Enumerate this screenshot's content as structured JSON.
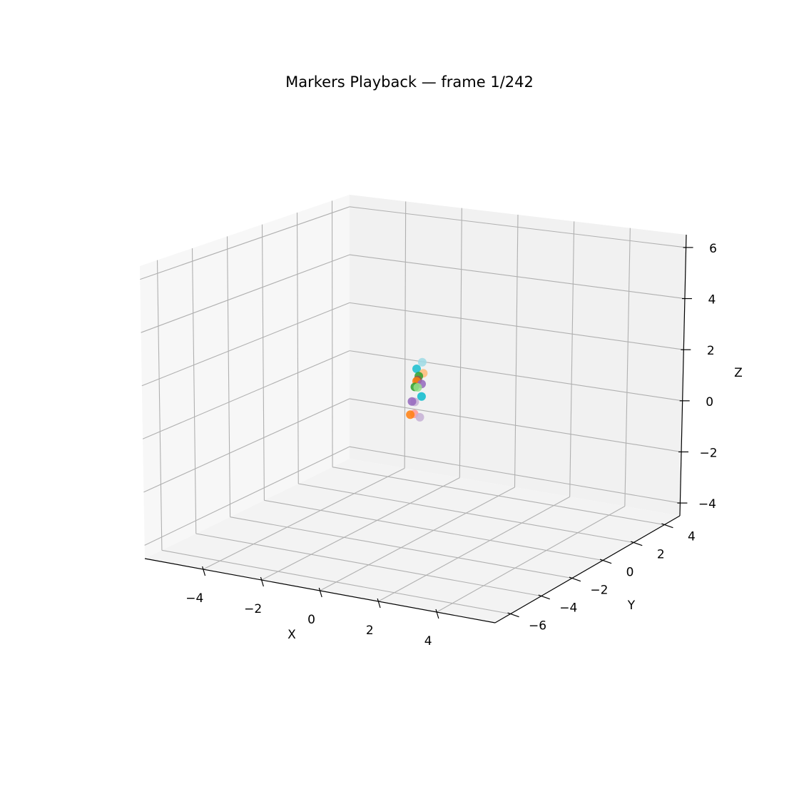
{
  "chart_data": {
    "type": "scatter",
    "projection": "3d",
    "title": "Markers Playback — frame 1/242",
    "xlabel": "X",
    "ylabel": "Y",
    "zlabel": "Z",
    "xlim": [
      -6,
      6
    ],
    "ylim": [
      -7,
      5
    ],
    "zlim": [
      -4.5,
      6.5
    ],
    "xticks": [
      -4,
      -2,
      0,
      2,
      4
    ],
    "yticks": [
      -6,
      -4,
      -2,
      0,
      2,
      4
    ],
    "zticks": [
      -4,
      -2,
      0,
      2,
      4,
      6
    ],
    "xtick_labels": [
      "−4",
      "−2",
      "0",
      "2",
      "4"
    ],
    "ytick_labels": [
      "−6",
      "−4",
      "−2",
      "0",
      "2",
      "4"
    ],
    "ztick_labels": [
      "−4",
      "−2",
      "0",
      "2",
      "4",
      "6"
    ],
    "grid": true,
    "legend": "none",
    "points": [
      {
        "x": -2.3,
        "y": 3.2,
        "z": 0.7,
        "color": "#9edae5"
      },
      {
        "x": -2.5,
        "y": 3.2,
        "z": 0.4,
        "color": "#17becf"
      },
      {
        "x": -2.2,
        "y": 3.1,
        "z": 0.3,
        "color": "#ffbb78"
      },
      {
        "x": -2.3,
        "y": 3.0,
        "z": 0.2,
        "color": "#2ca02c"
      },
      {
        "x": -2.4,
        "y": 3.1,
        "z": 0.0,
        "color": "#8c564b"
      },
      {
        "x": -2.5,
        "y": 3.2,
        "z": -0.1,
        "color": "#ff7f0e"
      },
      {
        "x": -2.2,
        "y": 3.0,
        "z": -0.1,
        "color": "#9467bd"
      },
      {
        "x": -2.5,
        "y": 3.1,
        "z": -0.3,
        "color": "#2ca02c"
      },
      {
        "x": -2.4,
        "y": 3.1,
        "z": -0.3,
        "color": "#98df8a"
      },
      {
        "x": -2.2,
        "y": 3.0,
        "z": -0.6,
        "color": "#9edae5"
      },
      {
        "x": -2.2,
        "y": 3.0,
        "z": -0.6,
        "color": "#17becf"
      },
      {
        "x": -2.5,
        "y": 3.1,
        "z": -0.9,
        "color": "#c5b0d5"
      },
      {
        "x": -2.6,
        "y": 3.1,
        "z": -0.9,
        "color": "#9467bd"
      },
      {
        "x": -2.4,
        "y": 2.9,
        "z": -1.3,
        "color": "#ff9896"
      },
      {
        "x": -2.6,
        "y": 3.0,
        "z": -1.4,
        "color": "#ff7f0e"
      },
      {
        "x": -2.2,
        "y": 2.9,
        "z": -1.4,
        "color": "#c5b0d5"
      }
    ]
  }
}
